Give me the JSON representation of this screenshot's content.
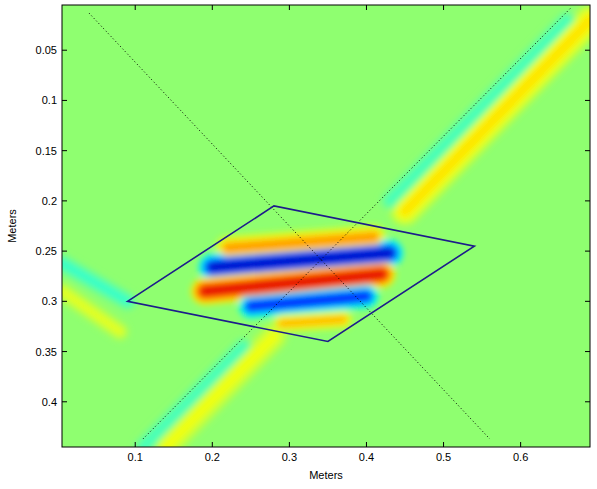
{
  "chart_data": {
    "type": "heatmap",
    "x_label": "Meters",
    "y_label": "Meters",
    "xlim": [
      0.005,
      0.69
    ],
    "ylim": [
      0.445,
      0.005
    ],
    "xticks": [
      0.1,
      0.2,
      0.3,
      0.4,
      0.5,
      0.6
    ],
    "yticks": [
      0.05,
      0.1,
      0.15,
      0.2,
      0.25,
      0.3,
      0.35,
      0.4
    ],
    "clim": [
      -1,
      1
    ],
    "background": 0.03,
    "bands": [
      {
        "x": [
          0.22,
          0.41
        ],
        "y": [
          0.247,
          0.236
        ],
        "width": 0.016,
        "value": 0.45
      },
      {
        "x": [
          0.2,
          0.43
        ],
        "y": [
          0.266,
          0.252
        ],
        "width": 0.018,
        "value": -0.85
      },
      {
        "x": [
          0.19,
          0.42
        ],
        "y": [
          0.29,
          0.273
        ],
        "width": 0.018,
        "value": 0.8
      },
      {
        "x": [
          0.25,
          0.4
        ],
        "y": [
          0.305,
          0.295
        ],
        "width": 0.016,
        "value": -0.7
      },
      {
        "x": [
          0.29,
          0.37
        ],
        "y": [
          0.322,
          0.318
        ],
        "width": 0.012,
        "value": 0.4
      },
      {
        "x": [
          0.45,
          0.69
        ],
        "y": [
          0.21,
          0.02
        ],
        "width": 0.02,
        "value": 0.3
      },
      {
        "x": [
          0.43,
          0.66
        ],
        "y": [
          0.2,
          0.02
        ],
        "width": 0.012,
        "value": -0.12
      },
      {
        "x": [
          0.14,
          0.28
        ],
        "y": [
          0.445,
          0.335
        ],
        "width": 0.018,
        "value": 0.22
      },
      {
        "x": [
          0.11,
          0.24
        ],
        "y": [
          0.445,
          0.345
        ],
        "width": 0.012,
        "value": -0.12
      },
      {
        "x": [
          0.005,
          0.09
        ],
        "y": [
          0.262,
          0.3
        ],
        "width": 0.012,
        "value": -0.15
      },
      {
        "x": [
          0.005,
          0.08
        ],
        "y": [
          0.29,
          0.33
        ],
        "width": 0.012,
        "value": 0.2
      }
    ],
    "dotted_lines": [
      {
        "x": [
          0.04,
          0.56
        ],
        "y": [
          0.013,
          0.437
        ]
      },
      {
        "x": [
          0.11,
          0.665
        ],
        "y": [
          0.437,
          0.008
        ]
      }
    ],
    "box": {
      "x": [
        0.09,
        0.28,
        0.54,
        0.35
      ],
      "y": [
        0.3,
        0.205,
        0.245,
        0.34
      ],
      "color": "#1c1c8a"
    }
  }
}
